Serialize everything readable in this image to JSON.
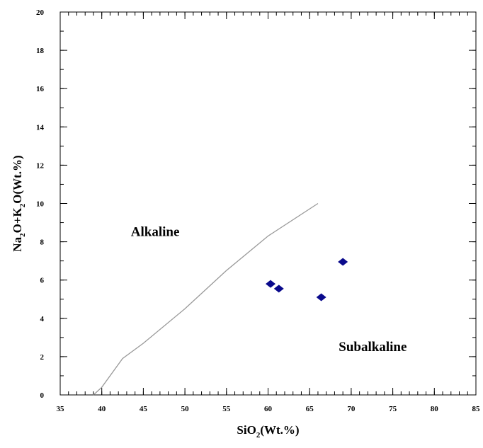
{
  "chart_data": {
    "type": "scatter",
    "title": "",
    "xlabel": {
      "main": "SiO",
      "sub": "2",
      "tail": "(Wt.%)"
    },
    "ylabel": {
      "p1": "Na",
      "s1": "2",
      "p2": "O+K",
      "s2": "2",
      "p3": "O(Wt.%)"
    },
    "xlim": [
      35,
      85
    ],
    "ylim": [
      0,
      20
    ],
    "xticks": [
      "35",
      "40",
      "45",
      "50",
      "55",
      "60",
      "65",
      "70",
      "75",
      "80",
      "85"
    ],
    "yticks": [
      "0",
      "2",
      "4",
      "6",
      "8",
      "10",
      "12",
      "14",
      "16",
      "18",
      "20"
    ],
    "grid": false,
    "marker": "diamond",
    "marker_color": "#0a0a8c",
    "line_color": "#999999",
    "divider_line": {
      "x": [
        39,
        40,
        42.5,
        45,
        50,
        55,
        60,
        66
      ],
      "y": [
        0,
        0.4,
        1.9,
        2.7,
        4.5,
        6.5,
        8.3,
        10
      ]
    },
    "series": [
      {
        "x": [
          60.3,
          61.3,
          66.4,
          69.0
        ],
        "y": [
          5.8,
          5.55,
          5.1,
          6.95
        ]
      }
    ],
    "regions": [
      {
        "label": "Alkaline",
        "x": 43.5,
        "y": 8.3
      },
      {
        "label": "Subalkaline",
        "x": 68.5,
        "y": 2.3
      }
    ]
  }
}
